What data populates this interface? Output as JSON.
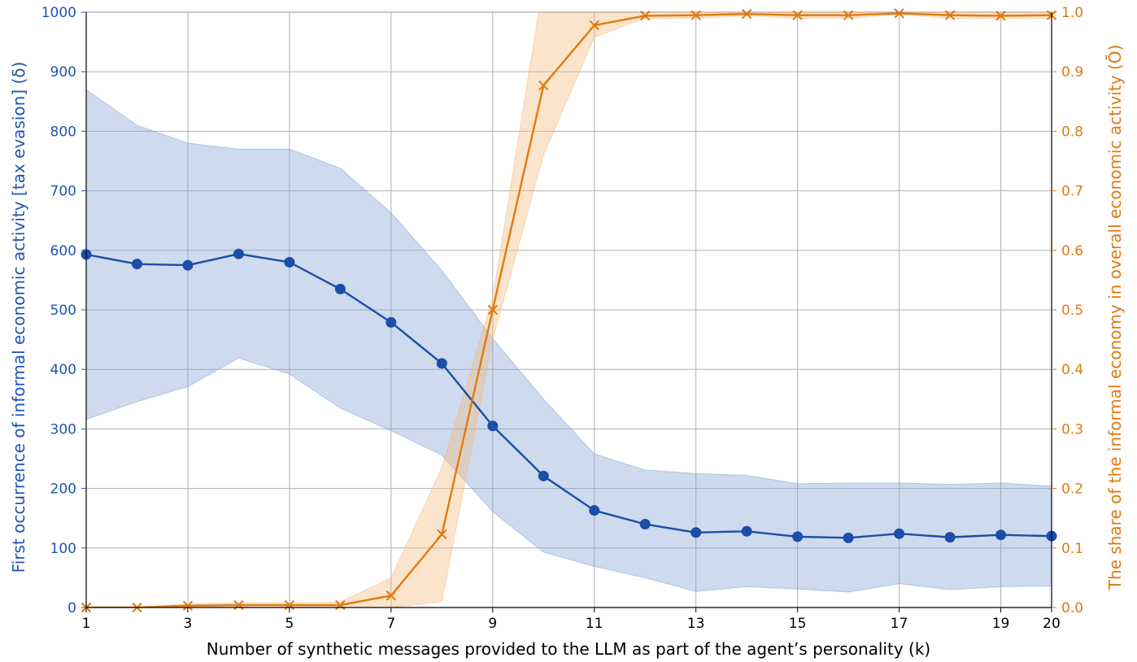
{
  "chart_data": {
    "type": "line",
    "xlabel": "Number of synthetic messages provided to the LLM as part of the agent’s personality (k)",
    "ylabel_left": "First occurrence of informal economic activity [tax evasion] (δ)",
    "ylabel_right": "The share of the informal economy in overall economic activity (Ō)",
    "xlim": [
      1,
      20
    ],
    "ylim_left": [
      0,
      1000
    ],
    "ylim_right": [
      0,
      1.0
    ],
    "grid": true,
    "x_ticks": [
      "1",
      "3",
      "5",
      "7",
      "9",
      "11",
      "13",
      "15",
      "17",
      "19",
      "20"
    ],
    "y_left_ticks": [
      "0",
      "100",
      "200",
      "300",
      "400",
      "500",
      "600",
      "700",
      "800",
      "900",
      "1000"
    ],
    "y_right_ticks": [
      "0.0",
      "0.1",
      "0.2",
      "0.3",
      "0.4",
      "0.5",
      "0.6",
      "0.7",
      "0.8",
      "0.9",
      "1.0"
    ],
    "colors": {
      "left": "#1a4ea8",
      "right": "#e07a0f",
      "left_band": "#7f9fd0",
      "right_band": "#f4b77a",
      "left_axis_text": "#1f55b0",
      "right_axis_text": "#e07a0f"
    },
    "series": [
      {
        "axis": "left",
        "marker": "circle",
        "x": [
          1,
          2,
          3,
          4,
          5,
          6,
          7,
          8,
          9,
          10,
          11,
          12,
          13,
          14,
          15,
          16,
          17,
          18,
          19,
          20
        ],
        "y": [
          593,
          577,
          575,
          594,
          580,
          535,
          479,
          410,
          305,
          221,
          163,
          140,
          126,
          128,
          119,
          117,
          124,
          118,
          122,
          120
        ],
        "band_upper": [
          870,
          810,
          780,
          770,
          770,
          738,
          663,
          566,
          452,
          350,
          258,
          231,
          225,
          222,
          208,
          209,
          209,
          207,
          209,
          204
        ],
        "band_lower": [
          316,
          346,
          371,
          419,
          392,
          335,
          297,
          256,
          161,
          93,
          69,
          50,
          27,
          35,
          31,
          26,
          40,
          30,
          35,
          36
        ]
      },
      {
        "axis": "right",
        "marker": "x",
        "x": [
          1,
          2,
          3,
          4,
          5,
          6,
          7,
          8,
          9,
          10,
          11,
          12,
          13,
          14,
          15,
          16,
          17,
          18,
          19,
          20
        ],
        "y": [
          0.0,
          0.0,
          0.003,
          0.004,
          0.004,
          0.004,
          0.02,
          0.123,
          0.5,
          0.877,
          0.978,
          0.994,
          0.995,
          0.997,
          0.995,
          0.995,
          0.998,
          0.995,
          0.994,
          0.995
        ],
        "band_upper": [
          0.0,
          0.0,
          0.006,
          0.008,
          0.008,
          0.009,
          0.05,
          0.235,
          0.52,
          1.05,
          1.05,
          1.0,
          1.0,
          1.0,
          1.0,
          1.0,
          1.0,
          1.0,
          1.0,
          1.0
        ],
        "band_lower": [
          0.0,
          0.0,
          0.0,
          0.0,
          0.0,
          0.0,
          0.0,
          0.01,
          0.45,
          0.76,
          0.958,
          0.99,
          0.99,
          0.994,
          0.99,
          0.99,
          0.996,
          0.99,
          0.99,
          0.99
        ]
      }
    ]
  }
}
